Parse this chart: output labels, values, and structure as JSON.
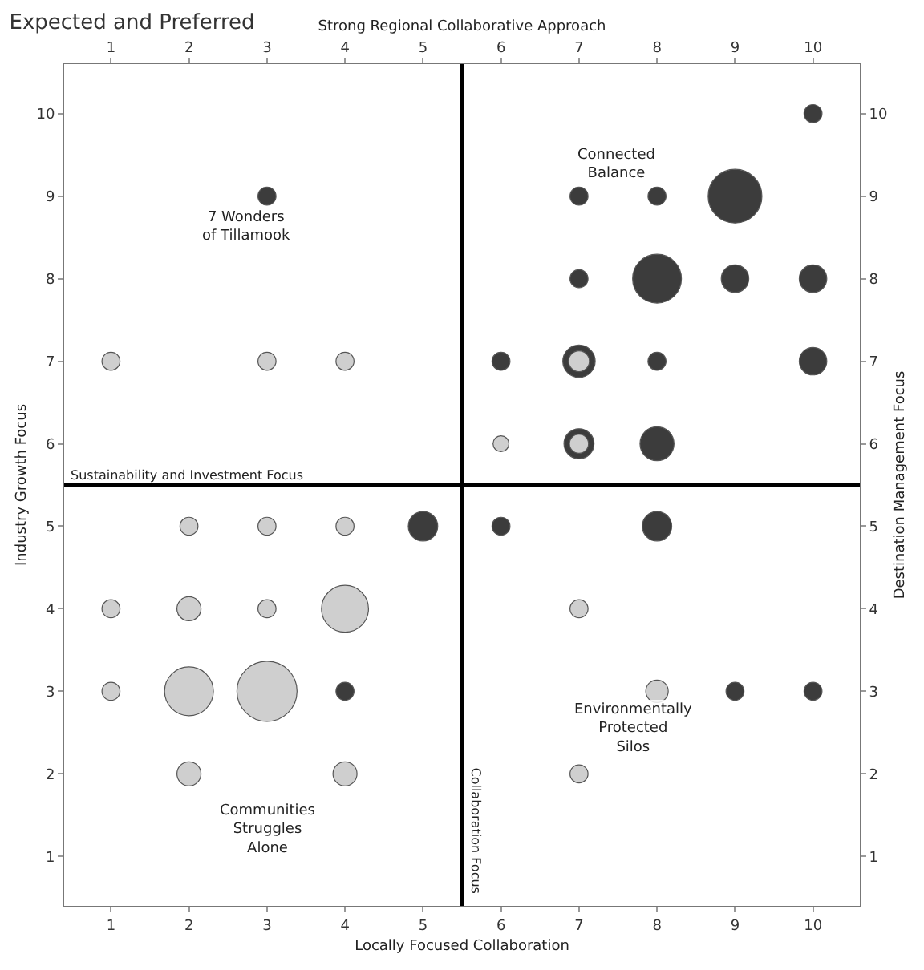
{
  "chart_data": {
    "type": "bubble",
    "title": "Expected and Preferred",
    "xlabel": "Locally Focused Collaboration",
    "x2label": "Strong Regional Collaborative Approach",
    "ylabel": "Industry Growth Focus",
    "y2label": "Destination Management Focus",
    "xlim": [
      0.4,
      10.6
    ],
    "ylim": [
      0.4,
      10.6
    ],
    "x2lim": [
      0.4,
      10.6
    ],
    "y2lim": [
      0.4,
      10.6
    ],
    "xticks": [
      1,
      2,
      3,
      4,
      5,
      6,
      7,
      8,
      9,
      10
    ],
    "yticks": [
      1,
      2,
      3,
      4,
      5,
      6,
      7,
      8,
      9,
      10
    ],
    "x2ticks": [
      1,
      2,
      3,
      4,
      5,
      6,
      7,
      8,
      9,
      10
    ],
    "y2ticks": [
      1,
      2,
      3,
      4,
      5,
      6,
      7,
      8,
      9,
      10
    ],
    "grid": false,
    "series": [
      {
        "color": "#3c3c3c",
        "x": [
          10,
          3,
          7,
          8,
          9,
          7,
          8,
          9,
          10,
          6,
          7,
          8,
          10,
          7,
          8,
          5,
          6,
          8,
          4,
          9,
          10
        ],
        "values": [
          10,
          9,
          9,
          9,
          9,
          8,
          8,
          8,
          8,
          7,
          7,
          7,
          7,
          6,
          6,
          5,
          5,
          5,
          3,
          3,
          3
        ],
        "sizes": [
          0.09,
          0.09,
          0.09,
          0.09,
          0.8,
          0.09,
          0.66,
          0.21,
          0.21,
          0.09,
          0.29,
          0.09,
          0.21,
          0.25,
          0.32,
          0.24,
          0.09,
          0.24,
          0.09,
          0.09,
          0.09
        ]
      },
      {
        "color": "#cfcfcf",
        "x": [
          1,
          3,
          4,
          6,
          7,
          7,
          2,
          3,
          4,
          1,
          2,
          3,
          4,
          7,
          1,
          2,
          3,
          8,
          2,
          4,
          7
        ],
        "values": [
          7,
          7,
          7,
          6,
          6,
          7,
          5,
          5,
          5,
          4,
          4,
          4,
          4,
          4,
          3,
          3,
          3,
          3,
          2,
          2,
          2
        ],
        "sizes": [
          0.09,
          0.09,
          0.09,
          0.07,
          0.1,
          0.12,
          0.09,
          0.09,
          0.09,
          0.09,
          0.16,
          0.09,
          0.61,
          0.09,
          0.09,
          0.66,
          1,
          0.14,
          0.16,
          0.16,
          0.09
        ]
      }
    ],
    "ref_lines": [
      {
        "axis": "x",
        "value": 5.5,
        "label": "Collaboration Focus",
        "color": "#000000",
        "line_style": "solid"
      },
      {
        "axis": "y",
        "value": 5.5,
        "label": "Sustainability and Investment Focus",
        "color": "#000000",
        "line_style": "solid"
      }
    ],
    "annotations": [
      "7 Wonders\nof Tillamook",
      "Connected\nBalance",
      "Communities\nStruggles\nAlone",
      "Environmentally\nProtected\nSilos"
    ]
  }
}
